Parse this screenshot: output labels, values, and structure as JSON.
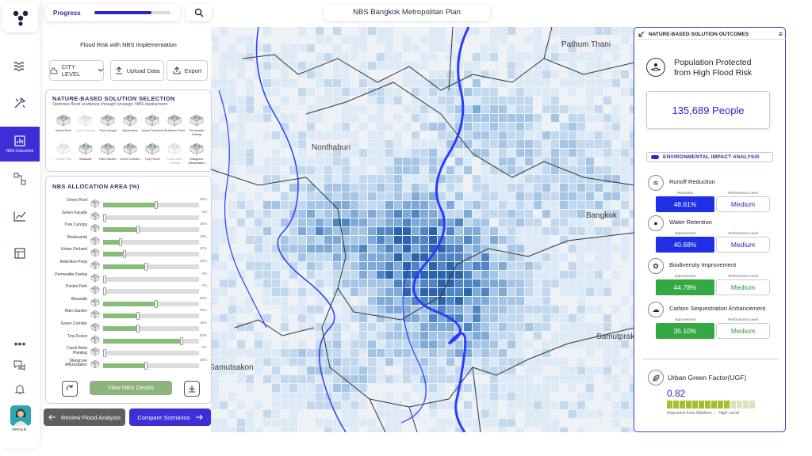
{
  "app": {
    "title": "NBS Bangkok Metropolitan Plan",
    "progress_label": "Progress",
    "progress_value": 0.75,
    "subtitle": "Flood Risk with NBS Implementation"
  },
  "sidebar": {
    "icons": [
      "logo-icon",
      "waves-icon",
      "tools-icon",
      "nbs-outcomes-icon",
      "flow-icon",
      "chart-icon",
      "table-icon",
      "more-icon",
      "chat-icon",
      "bell-icon"
    ],
    "active_label": "NBS Outcomes",
    "user_name": "Amna A."
  },
  "toolbar": {
    "level_select": "CITY LEVEL",
    "upload_label": "Upload Data",
    "export_label": "Export"
  },
  "nbs_selection": {
    "title": "NATURE-BASED SOLUTION SELECTION",
    "subtitle": "Optimize flood resilience through strategic NBS deployment",
    "items": [
      {
        "name": "Green Roof",
        "faded": false
      },
      {
        "name": "Green Facade",
        "faded": true
      },
      {
        "name": "Tree Canopy",
        "faded": false
      },
      {
        "name": "Boulevards",
        "faded": false
      },
      {
        "name": "Urban Orchards",
        "faded": false
      },
      {
        "name": "Retention Pond",
        "faded": false
      },
      {
        "name": "Permeable Paving",
        "faded": false
      },
      {
        "name": "Pocket Park",
        "faded": true
      },
      {
        "name": "Bioswale",
        "faded": false
      },
      {
        "name": "Rain Garden",
        "faded": false
      },
      {
        "name": "Green Corridor",
        "faded": false
      },
      {
        "name": "Tiny Forest",
        "faded": false
      },
      {
        "name": "Canal Bank Planting",
        "faded": true
      },
      {
        "name": "Mangrove Afforestation",
        "faded": false
      }
    ]
  },
  "allocation": {
    "title": "NBS ALLOCATION AREA (%)",
    "rows": [
      {
        "name": "Green Roof",
        "value": 0.55,
        "pct": "55%"
      },
      {
        "name": "Green Facade",
        "value": 0,
        "pct": "0%"
      },
      {
        "name": "Tree Canopy",
        "value": 0.36,
        "pct": "36%"
      },
      {
        "name": "Boulevards",
        "value": 0.18,
        "pct": "18%"
      },
      {
        "name": "Urban Orchard",
        "value": 0.22,
        "pct": "22%"
      },
      {
        "name": "Retention Pond",
        "value": 0.45,
        "pct": "45%"
      },
      {
        "name": "Permeable Paving",
        "value": 0,
        "pct": "0%"
      },
      {
        "name": "Pocket Park",
        "value": 0,
        "pct": "0%"
      },
      {
        "name": "Bioswale",
        "value": 0.55,
        "pct": "55%"
      },
      {
        "name": "Rain Garden",
        "value": 0.36,
        "pct": "36%"
      },
      {
        "name": "Green Corridor",
        "value": 0.36,
        "pct": "36%"
      },
      {
        "name": "Tiny Forest",
        "value": 0.82,
        "pct": "82%"
      },
      {
        "name": "Canal Bank Planting",
        "value": 0,
        "pct": "0%"
      },
      {
        "name": "Mangrove Afforestation",
        "value": 0.45,
        "pct": "45%"
      }
    ],
    "details_button": "View NBS Details"
  },
  "bottom": {
    "review_button": "Review Flood Analysis",
    "compare_button": "Compare Scenarios"
  },
  "map": {
    "labels": [
      "Pathum Thani",
      "Nonthaburi",
      "Bangkok",
      "Samutprak",
      "Samutsakon"
    ]
  },
  "outcomes": {
    "title": "NATURE-BASED SOLUTION OUTCOMES",
    "population_title_line1": "Population Protected",
    "population_title_line2": "from High Flood Risk",
    "population_value": "135,689 People",
    "env_title": "ENVIRONMENTAL IMPACT ANALYSIS",
    "perf_label": "Performance Level",
    "metrics": [
      {
        "title": "Runoff Reduction",
        "label": "Reduction",
        "value": "48.61%",
        "level": "Medium",
        "color": "#1f2fe6",
        "level_color": "#2a2fb0",
        "icon": "runoff-icon"
      },
      {
        "title": "Water Retention",
        "label": "Improvement",
        "value": "40.68%",
        "level": "Medium",
        "color": "#1f2fe6",
        "level_color": "#2a2fb0",
        "icon": "water-drop-icon"
      },
      {
        "title": "Biodiversity Improvement",
        "label": "Improvement",
        "value": "44.78%",
        "level": "Medium",
        "color": "#34a843",
        "level_color": "#2f9a3b",
        "icon": "biodiversity-icon"
      },
      {
        "title": "Carbon Sequestration Enhancement",
        "label": "Improvement",
        "value": "35.10%",
        "level": "Medium",
        "color": "#34a843",
        "level_color": "#2f9a3b",
        "icon": "cloud-icon"
      }
    ],
    "ugf_title": "Urban Green Factor(UGF)",
    "ugf_value": "0.82",
    "ugf_filled": 10,
    "ugf_total": 14,
    "ugf_caption": "Improved from Medium → High Level"
  }
}
